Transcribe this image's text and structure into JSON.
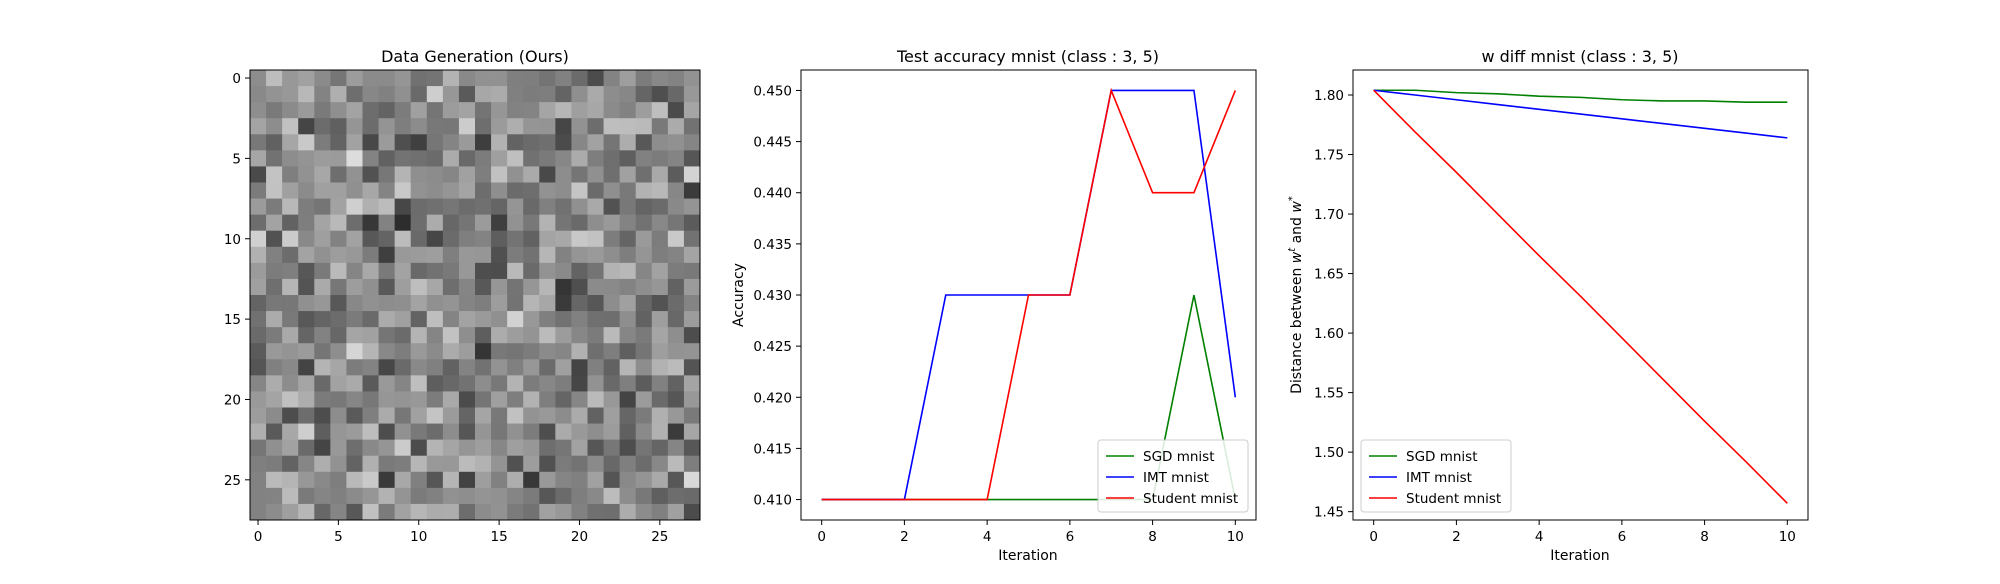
{
  "chart_data": [
    {
      "type": "heatmap",
      "title": "Data Generation (Ours)",
      "colormap": "gray",
      "rows": 28,
      "cols": 28,
      "xticks": [
        0,
        5,
        10,
        15,
        20,
        25
      ],
      "yticks": [
        0,
        5,
        10,
        15,
        20,
        25
      ],
      "xlim": [
        -0.5,
        27.5
      ],
      "ylim": [
        27.5,
        -0.5
      ]
    },
    {
      "type": "line",
      "title": "Test accuracy mnist (class : 3, 5)",
      "xlabel": "Iteration",
      "ylabel": "Accuracy",
      "x": [
        0,
        1,
        2,
        3,
        4,
        5,
        6,
        7,
        8,
        9,
        10
      ],
      "xlim": [
        -0.5,
        10.5
      ],
      "ylim": [
        0.408,
        0.452
      ],
      "xticks": [
        0,
        2,
        4,
        6,
        8,
        10
      ],
      "yticks": [
        0.41,
        0.415,
        0.42,
        0.425,
        0.43,
        0.435,
        0.44,
        0.445,
        0.45
      ],
      "legend_position": "lower-right",
      "series": [
        {
          "name": "SGD mnist",
          "color": "#008000",
          "values": [
            0.41,
            0.41,
            0.41,
            0.41,
            0.41,
            0.41,
            0.41,
            0.41,
            0.41,
            0.43,
            0.41
          ]
        },
        {
          "name": "IMT mnist",
          "color": "#0000ff",
          "values": [
            0.41,
            0.41,
            0.41,
            0.43,
            0.43,
            0.43,
            0.43,
            0.45,
            0.45,
            0.45,
            0.42
          ]
        },
        {
          "name": "Student mnist",
          "color": "#ff0000",
          "values": [
            0.41,
            0.41,
            0.41,
            0.41,
            0.41,
            0.43,
            0.43,
            0.45,
            0.44,
            0.44,
            0.45
          ]
        }
      ]
    },
    {
      "type": "line",
      "title": "w diff mnist (class : 3, 5)",
      "xlabel": "Iteration",
      "ylabel": "Distance between w^t and w^*",
      "ylabel_parts": {
        "prefix": "Distance between ",
        "w1": "w",
        "sup1": "t",
        "middle": " and ",
        "w2": "w",
        "sup2": "*"
      },
      "x": [
        0,
        1,
        2,
        3,
        4,
        5,
        6,
        7,
        8,
        9,
        10
      ],
      "xlim": [
        -0.5,
        10.5
      ],
      "ylim": [
        1.443,
        1.821
      ],
      "xticks": [
        0,
        2,
        4,
        6,
        8,
        10
      ],
      "yticks": [
        1.45,
        1.5,
        1.55,
        1.6,
        1.65,
        1.7,
        1.75,
        1.8
      ],
      "legend_position": "lower-left",
      "series": [
        {
          "name": "SGD mnist",
          "color": "#008000",
          "values": [
            1.804,
            1.804,
            1.802,
            1.801,
            1.799,
            1.798,
            1.796,
            1.795,
            1.795,
            1.794,
            1.794
          ]
        },
        {
          "name": "IMT mnist",
          "color": "#0000ff",
          "values": [
            1.804,
            1.8,
            1.796,
            1.792,
            1.788,
            1.784,
            1.78,
            1.776,
            1.772,
            1.768,
            1.764
          ]
        },
        {
          "name": "Student mnist",
          "color": "#ff0000",
          "values": [
            1.804,
            1.769,
            1.735,
            1.7,
            1.665,
            1.631,
            1.596,
            1.561,
            1.526,
            1.492,
            1.457
          ]
        }
      ]
    }
  ]
}
